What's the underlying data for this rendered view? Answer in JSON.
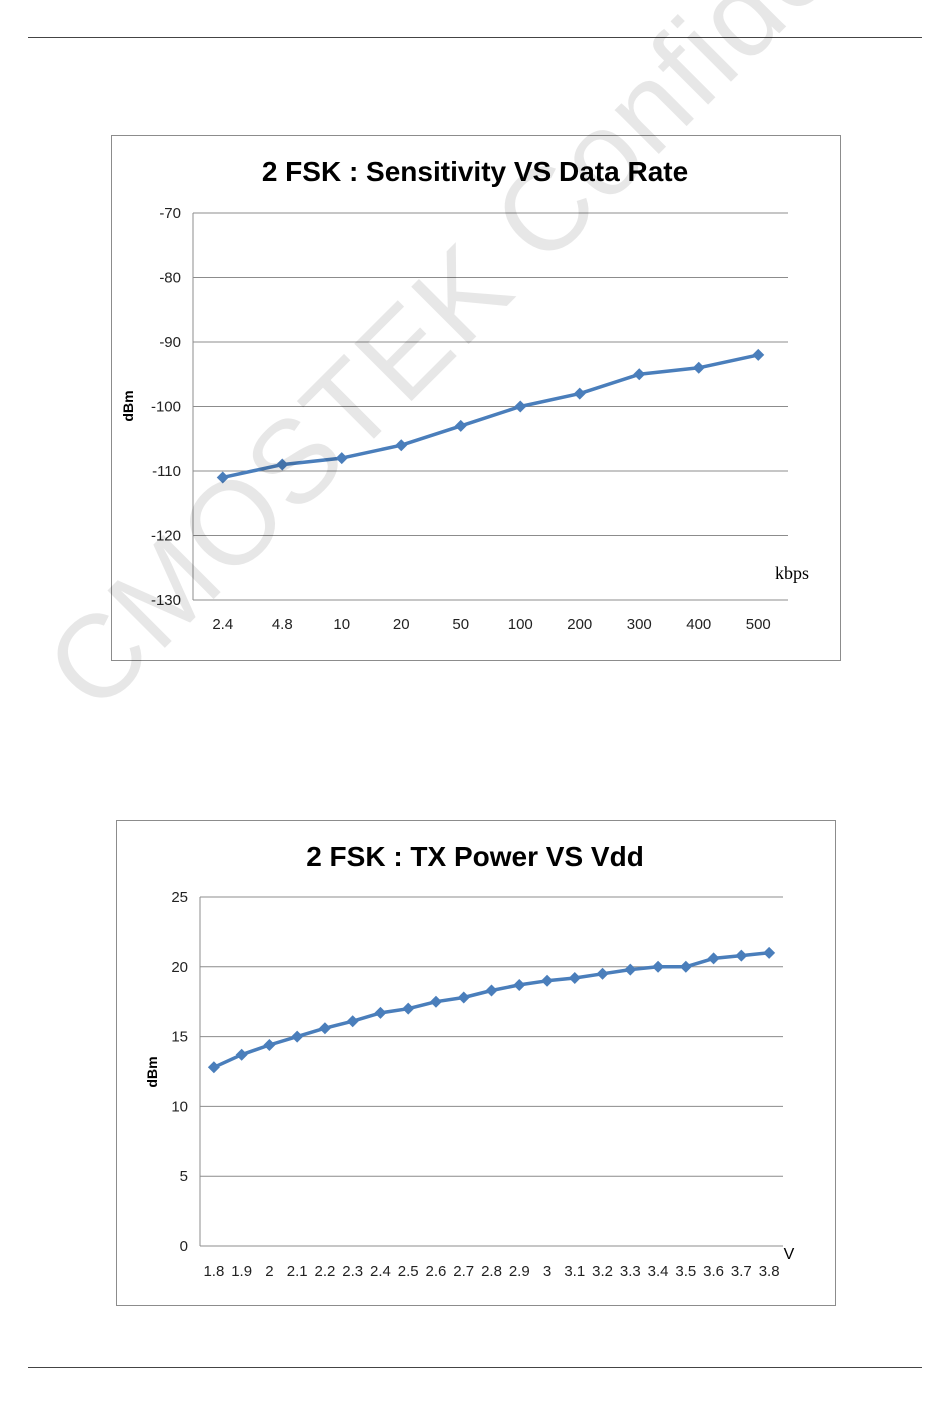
{
  "watermark": "CMOSTEK Confidential",
  "colors": {
    "series": "#4a7ebb",
    "grid": "#8c8c8c"
  },
  "chart_data": [
    {
      "type": "line",
      "title": "2 FSK :    Sensitivity VS Data Rate",
      "xlabel": "kbps",
      "ylabel": "dBm",
      "categories": [
        "2.4",
        "4.8",
        "10",
        "20",
        "50",
        "100",
        "200",
        "300",
        "400",
        "500"
      ],
      "series": [
        {
          "name": "Sensitivity",
          "values": [
            -111,
            -109,
            -108,
            -106,
            -103,
            -100,
            -98,
            -95,
            -94,
            -92
          ]
        }
      ],
      "ylim": [
        -130,
        -70
      ],
      "yticks": [
        -70,
        -80,
        -90,
        -100,
        -110,
        -120,
        -130
      ],
      "grid": true,
      "marker": "diamond"
    },
    {
      "type": "line",
      "title": "2 FSK :   TX Power  VS  Vdd",
      "xlabel": "V",
      "ylabel": "dBm",
      "categories": [
        "1.8",
        "1.9",
        "2",
        "2.1",
        "2.2",
        "2.3",
        "2.4",
        "2.5",
        "2.6",
        "2.7",
        "2.8",
        "2.9",
        "3",
        "3.1",
        "3.2",
        "3.3",
        "3.4",
        "3.5",
        "3.6",
        "3.7",
        "3.8"
      ],
      "series": [
        {
          "name": "TX Power",
          "values": [
            12.8,
            13.7,
            14.4,
            15.0,
            15.6,
            16.1,
            16.7,
            17.0,
            17.5,
            17.8,
            18.3,
            18.7,
            19.0,
            19.2,
            19.5,
            19.8,
            20.0,
            20.0,
            20.6,
            20.8,
            21.0
          ]
        }
      ],
      "ylim": [
        0,
        25
      ],
      "yticks": [
        25,
        20,
        15,
        10,
        5,
        0
      ],
      "grid": true,
      "marker": "diamond"
    }
  ]
}
